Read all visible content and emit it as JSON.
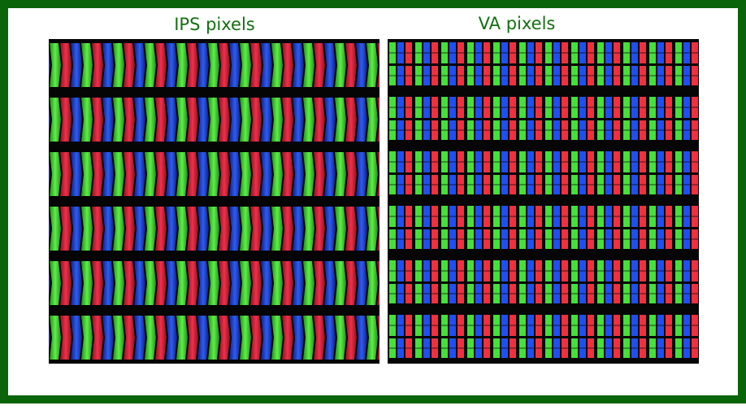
{
  "panels": [
    {
      "title": "IPS pixels"
    },
    {
      "title": "VA pixels"
    }
  ]
}
